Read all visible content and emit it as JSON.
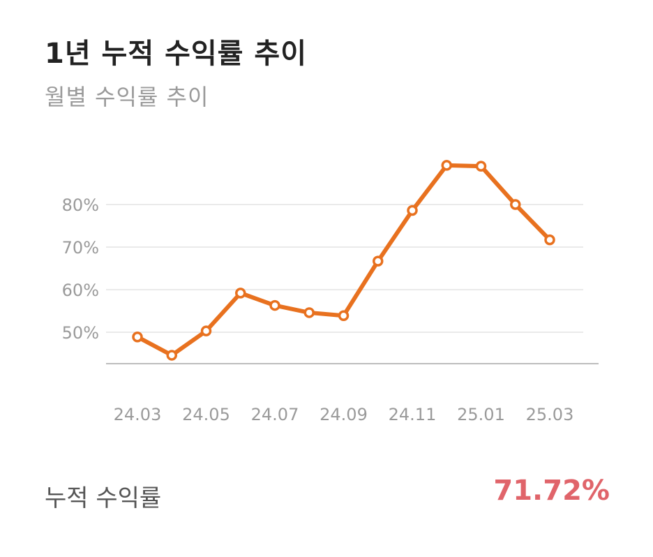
{
  "header": {
    "title": "1년 누적 수익률 추이",
    "subtitle": "월별 수익률 추이"
  },
  "chart_data": {
    "type": "line",
    "x": [
      "24.03",
      "24.04",
      "24.05",
      "24.06",
      "24.07",
      "24.08",
      "24.09",
      "24.10",
      "24.11",
      "24.12",
      "25.01",
      "25.02",
      "25.03"
    ],
    "x_tick_labels": [
      "24.03",
      "24.05",
      "24.07",
      "24.09",
      "24.11",
      "25.01",
      "25.03"
    ],
    "y_tick_labels": [
      "50%",
      "60%",
      "70%",
      "80%"
    ],
    "y_ticks": [
      50,
      60,
      70,
      80
    ],
    "series": [
      {
        "values": [
          48.9,
          44.6,
          50.3,
          59.2,
          56.3,
          54.6,
          53.9,
          66.7,
          78.6,
          89.2,
          89.0,
          80.0,
          71.7
        ]
      }
    ],
    "ylim": [
      45,
      80
    ],
    "grid": true,
    "line_color": "#e8711f",
    "title": "",
    "xlabel": "",
    "ylabel": ""
  },
  "summary": {
    "label": "누적 수익률",
    "value": "71.72%",
    "value_color": "#e0646a"
  }
}
